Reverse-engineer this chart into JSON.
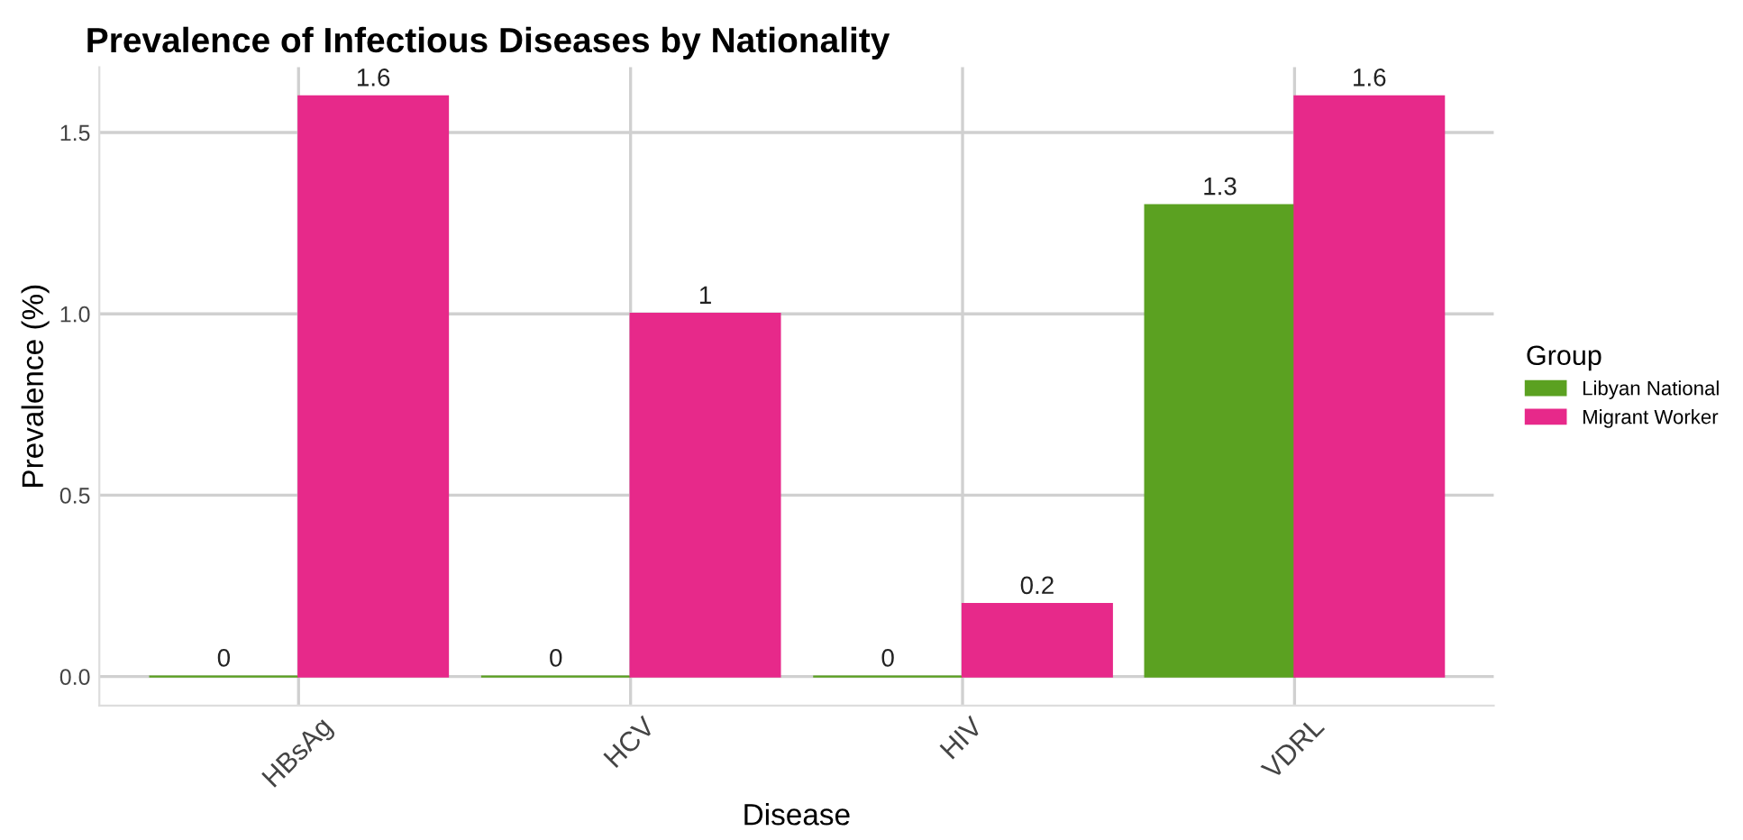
{
  "chart_data": {
    "type": "bar",
    "title": "Prevalence of Infectious Diseases by Nationality",
    "xlabel": "Disease",
    "ylabel": "Prevalence (%)",
    "legend_title": "Group",
    "categories": [
      "HBsAg",
      "HCV",
      "HIV",
      "VDRL"
    ],
    "series": [
      {
        "name": "Libyan National",
        "color": "#5ba121",
        "values": [
          0,
          0,
          0,
          1.3
        ]
      },
      {
        "name": "Migrant Worker",
        "color": "#e7298a",
        "values": [
          1.6,
          1,
          0.2,
          1.6
        ]
      }
    ],
    "ylim": [
      -0.08,
      1.68
    ],
    "yticks": [
      {
        "value": 0,
        "label": "0.0"
      },
      {
        "value": 0.5,
        "label": "0.5"
      },
      {
        "value": 1,
        "label": "1.0"
      },
      {
        "value": 1.5,
        "label": "1.5"
      }
    ],
    "data_labels": true,
    "grid": true,
    "legend": "right"
  }
}
